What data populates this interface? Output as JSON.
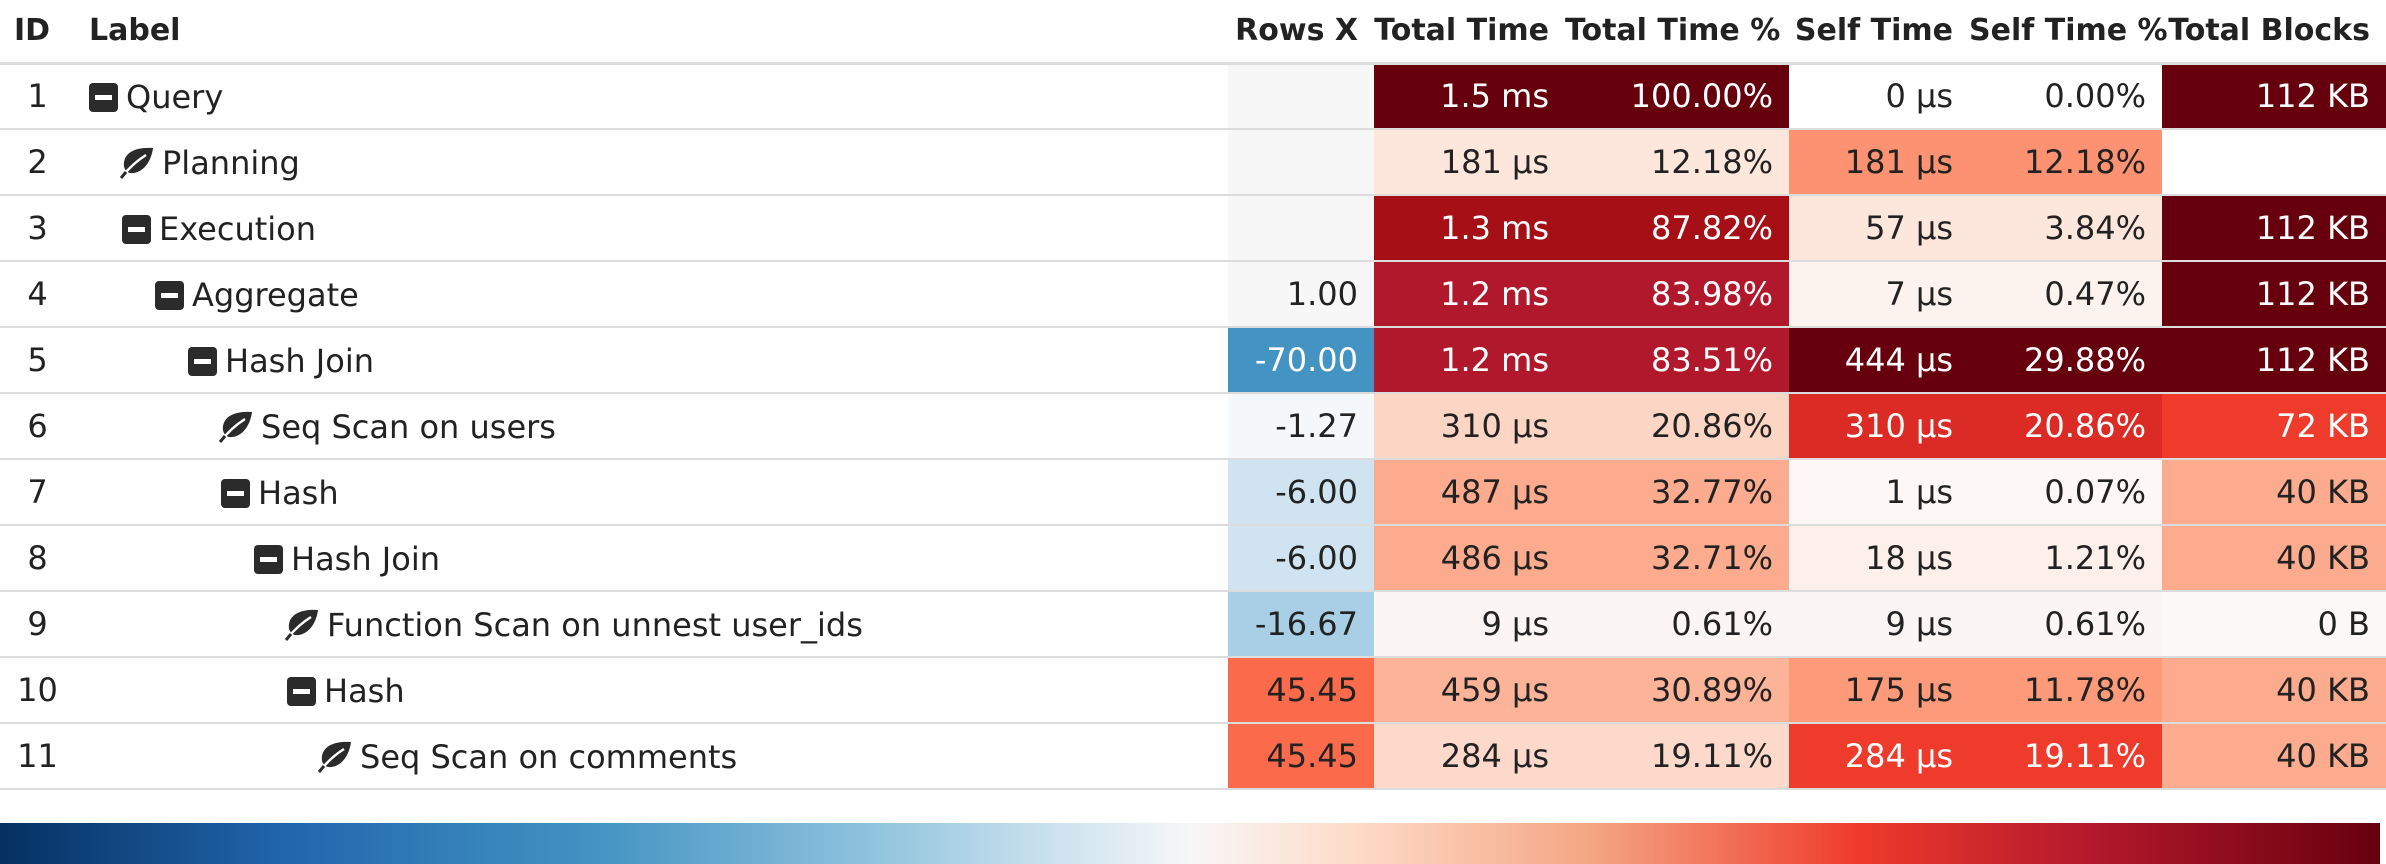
{
  "columns": {
    "id": "ID",
    "label": "Label",
    "rows_x": "Rows X",
    "total_time": "Total Time",
    "total_time_pct": "Total Time %",
    "self_time": "Self Time",
    "self_time_pct": "Self Time %",
    "total_blocks": "Total Blocks"
  },
  "icons": {
    "expanded": "collapse-box-icon",
    "leaf": "leaf-icon"
  },
  "rows": [
    {
      "id": "1",
      "label": "Query",
      "depth": 0,
      "icon": "collapse",
      "rows_x": "",
      "total_time": "1.5 ms",
      "total_time_pct": "100.00%",
      "self_time": "0 µs",
      "self_time_pct": "0.00%",
      "total_blocks": "112 KB",
      "colors": {
        "rows_x": "#f7f7f7",
        "total_time": "#67000d",
        "total_time_pct": "#67000d",
        "self_time": "#ffffff",
        "self_time_pct": "#ffffff",
        "total_blocks": "#67000d"
      }
    },
    {
      "id": "2",
      "label": "Planning",
      "depth": 1,
      "icon": "leaf",
      "rows_x": "",
      "total_time": "181 µs",
      "total_time_pct": "12.18%",
      "self_time": "181 µs",
      "self_time_pct": "12.18%",
      "total_blocks": "",
      "colors": {
        "rows_x": "#f7f7f7",
        "total_time": "#fde6dc",
        "total_time_pct": "#fde6dc",
        "self_time": "#fc9272",
        "self_time_pct": "#fc9272",
        "total_blocks": "#ffffff"
      }
    },
    {
      "id": "3",
      "label": "Execution",
      "depth": 1,
      "icon": "collapse",
      "rows_x": "",
      "total_time": "1.3 ms",
      "total_time_pct": "87.82%",
      "self_time": "57 µs",
      "self_time_pct": "3.84%",
      "total_blocks": "112 KB",
      "colors": {
        "rows_x": "#f7f7f7",
        "total_time": "#a50f15",
        "total_time_pct": "#a50f15",
        "self_time": "#fde6dc",
        "self_time_pct": "#fde6dc",
        "total_blocks": "#67000d"
      }
    },
    {
      "id": "4",
      "label": "Aggregate",
      "depth": 2,
      "icon": "collapse",
      "rows_x": "1.00",
      "total_time": "1.2 ms",
      "total_time_pct": "83.98%",
      "self_time": "7 µs",
      "self_time_pct": "0.47%",
      "total_blocks": "112 KB",
      "colors": {
        "rows_x": "#f7f7f7",
        "total_time": "#b2182b",
        "total_time_pct": "#b2182b",
        "self_time": "#fcf3ef",
        "self_time_pct": "#fcf3ef",
        "total_blocks": "#67000d"
      }
    },
    {
      "id": "5",
      "label": "Hash Join",
      "depth": 3,
      "icon": "collapse",
      "rows_x": "-70.00",
      "total_time": "1.2 ms",
      "total_time_pct": "83.51%",
      "self_time": "444 µs",
      "self_time_pct": "29.88%",
      "total_blocks": "112 KB",
      "colors": {
        "rows_x": "#4393c3",
        "total_time": "#b2182b",
        "total_time_pct": "#b2182b",
        "self_time": "#67000d",
        "self_time_pct": "#67000d",
        "total_blocks": "#67000d"
      }
    },
    {
      "id": "6",
      "label": "Seq Scan on users",
      "depth": 4,
      "icon": "leaf",
      "rows_x": "-1.27",
      "total_time": "310 µs",
      "total_time_pct": "20.86%",
      "self_time": "310 µs",
      "self_time_pct": "20.86%",
      "total_blocks": "72 KB",
      "colors": {
        "rows_x": "#f5f8fb",
        "total_time": "#fcd5c4",
        "total_time_pct": "#fcd5c4",
        "self_time": "#dc2a25",
        "self_time_pct": "#dc2a25",
        "total_blocks": "#ef3b2c"
      }
    },
    {
      "id": "7",
      "label": "Hash",
      "depth": 4,
      "icon": "collapse",
      "rows_x": "-6.00",
      "total_time": "487 µs",
      "total_time_pct": "32.77%",
      "self_time": "1 µs",
      "self_time_pct": "0.07%",
      "total_blocks": "40 KB",
      "colors": {
        "rows_x": "#cfe3f0",
        "total_time": "#fcab8f",
        "total_time_pct": "#fcab8f",
        "self_time": "#fdf7f5",
        "self_time_pct": "#fdf7f5",
        "total_blocks": "#fcab8f"
      }
    },
    {
      "id": "8",
      "label": "Hash Join",
      "depth": 5,
      "icon": "collapse",
      "rows_x": "-6.00",
      "total_time": "486 µs",
      "total_time_pct": "32.71%",
      "self_time": "18 µs",
      "self_time_pct": "1.21%",
      "total_blocks": "40 KB",
      "colors": {
        "rows_x": "#cfe3f0",
        "total_time": "#fcab8f",
        "total_time_pct": "#fcab8f",
        "self_time": "#fdf0ea",
        "self_time_pct": "#fdf0ea",
        "total_blocks": "#fcab8f"
      }
    },
    {
      "id": "9",
      "label": "Function Scan on unnest user_ids",
      "depth": 6,
      "icon": "leaf",
      "rows_x": "-16.67",
      "total_time": "9 µs",
      "total_time_pct": "0.61%",
      "self_time": "9 µs",
      "self_time_pct": "0.61%",
      "total_blocks": "0 B",
      "colors": {
        "rows_x": "#a8cfe5",
        "total_time": "#fbf6f4",
        "total_time_pct": "#fbf6f4",
        "self_time": "#fbf6f4",
        "self_time_pct": "#fbf6f4",
        "total_blocks": "#fbf8f7"
      }
    },
    {
      "id": "10",
      "label": "Hash",
      "depth": 6,
      "icon": "collapse",
      "rows_x": "45.45",
      "total_time": "459 µs",
      "total_time_pct": "30.89%",
      "self_time": "175 µs",
      "self_time_pct": "11.78%",
      "total_blocks": "40 KB",
      "colors": {
        "rows_x": "#fb6a4a",
        "total_time": "#fcb398",
        "total_time_pct": "#fcb398",
        "self_time": "#fc9a7a",
        "self_time_pct": "#fc9a7a",
        "total_blocks": "#fcab8f"
      }
    },
    {
      "id": "11",
      "label": "Seq Scan on comments",
      "depth": 7,
      "icon": "leaf",
      "rows_x": "45.45",
      "total_time": "284 µs",
      "total_time_pct": "19.11%",
      "self_time": "284 µs",
      "self_time_pct": "19.11%",
      "total_blocks": "40 KB",
      "colors": {
        "rows_x": "#fb6a4a",
        "total_time": "#fcd9ca",
        "total_time_pct": "#fcd9ca",
        "self_time": "#ef3b2c",
        "self_time_pct": "#ef3b2c",
        "total_blocks": "#fcab8f"
      }
    }
  ],
  "color_scale": {
    "stops": [
      "#053061",
      "#2166ac",
      "#4393c3",
      "#92c5de",
      "#d1e5f0",
      "#f7f7f7",
      "#fddbc7",
      "#f4a582",
      "#ef3b2c",
      "#b2182b",
      "#67000d"
    ]
  }
}
